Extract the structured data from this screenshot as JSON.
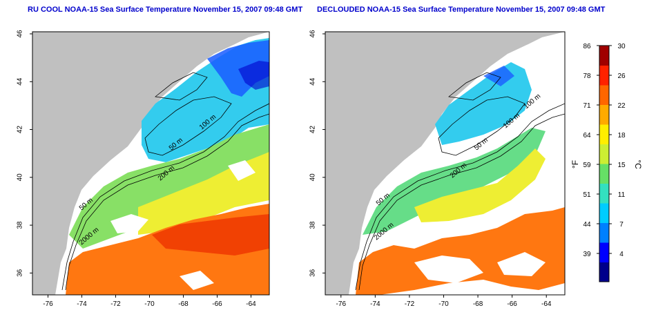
{
  "panels": [
    {
      "title": "RU COOL NOAA-15 Sea Surface Temperature November 15, 2007 09:48 GMT",
      "contours": [
        "50 m",
        "100 m",
        "200 m",
        "50 m",
        "2000 m"
      ]
    },
    {
      "title": "DECLOUDED NOAA-15 Sea Surface Temperature November 15, 2007 09:48 GMT",
      "contours": [
        "100 m",
        "100 m",
        "50 m",
        "200 m",
        "50 m",
        "2000 m"
      ]
    }
  ],
  "axes": {
    "x_ticks": [
      "-76",
      "-74",
      "-72",
      "-70",
      "-68",
      "-66",
      "-64"
    ],
    "y_ticks": [
      "36",
      "38",
      "40",
      "42",
      "44",
      "46"
    ]
  },
  "colorbar": {
    "unit_f": "°F",
    "unit_c": "°C",
    "f_labels": [
      "86",
      "78",
      "71",
      "64",
      "59",
      "51",
      "44",
      "39"
    ],
    "c_labels": [
      "30",
      "26",
      "22",
      "18",
      "15",
      "11",
      "7",
      "4"
    ],
    "colors": [
      "#00008b",
      "#0000ff",
      "#0080ff",
      "#00ccff",
      "#33e0c0",
      "#66e066",
      "#ccee33",
      "#ffee00",
      "#ffaa00",
      "#ff6600",
      "#ff2200",
      "#a00000"
    ]
  },
  "colors": {
    "land": "#c0c0c0",
    "cloud": "#ffffff",
    "title": "#0000cc"
  }
}
